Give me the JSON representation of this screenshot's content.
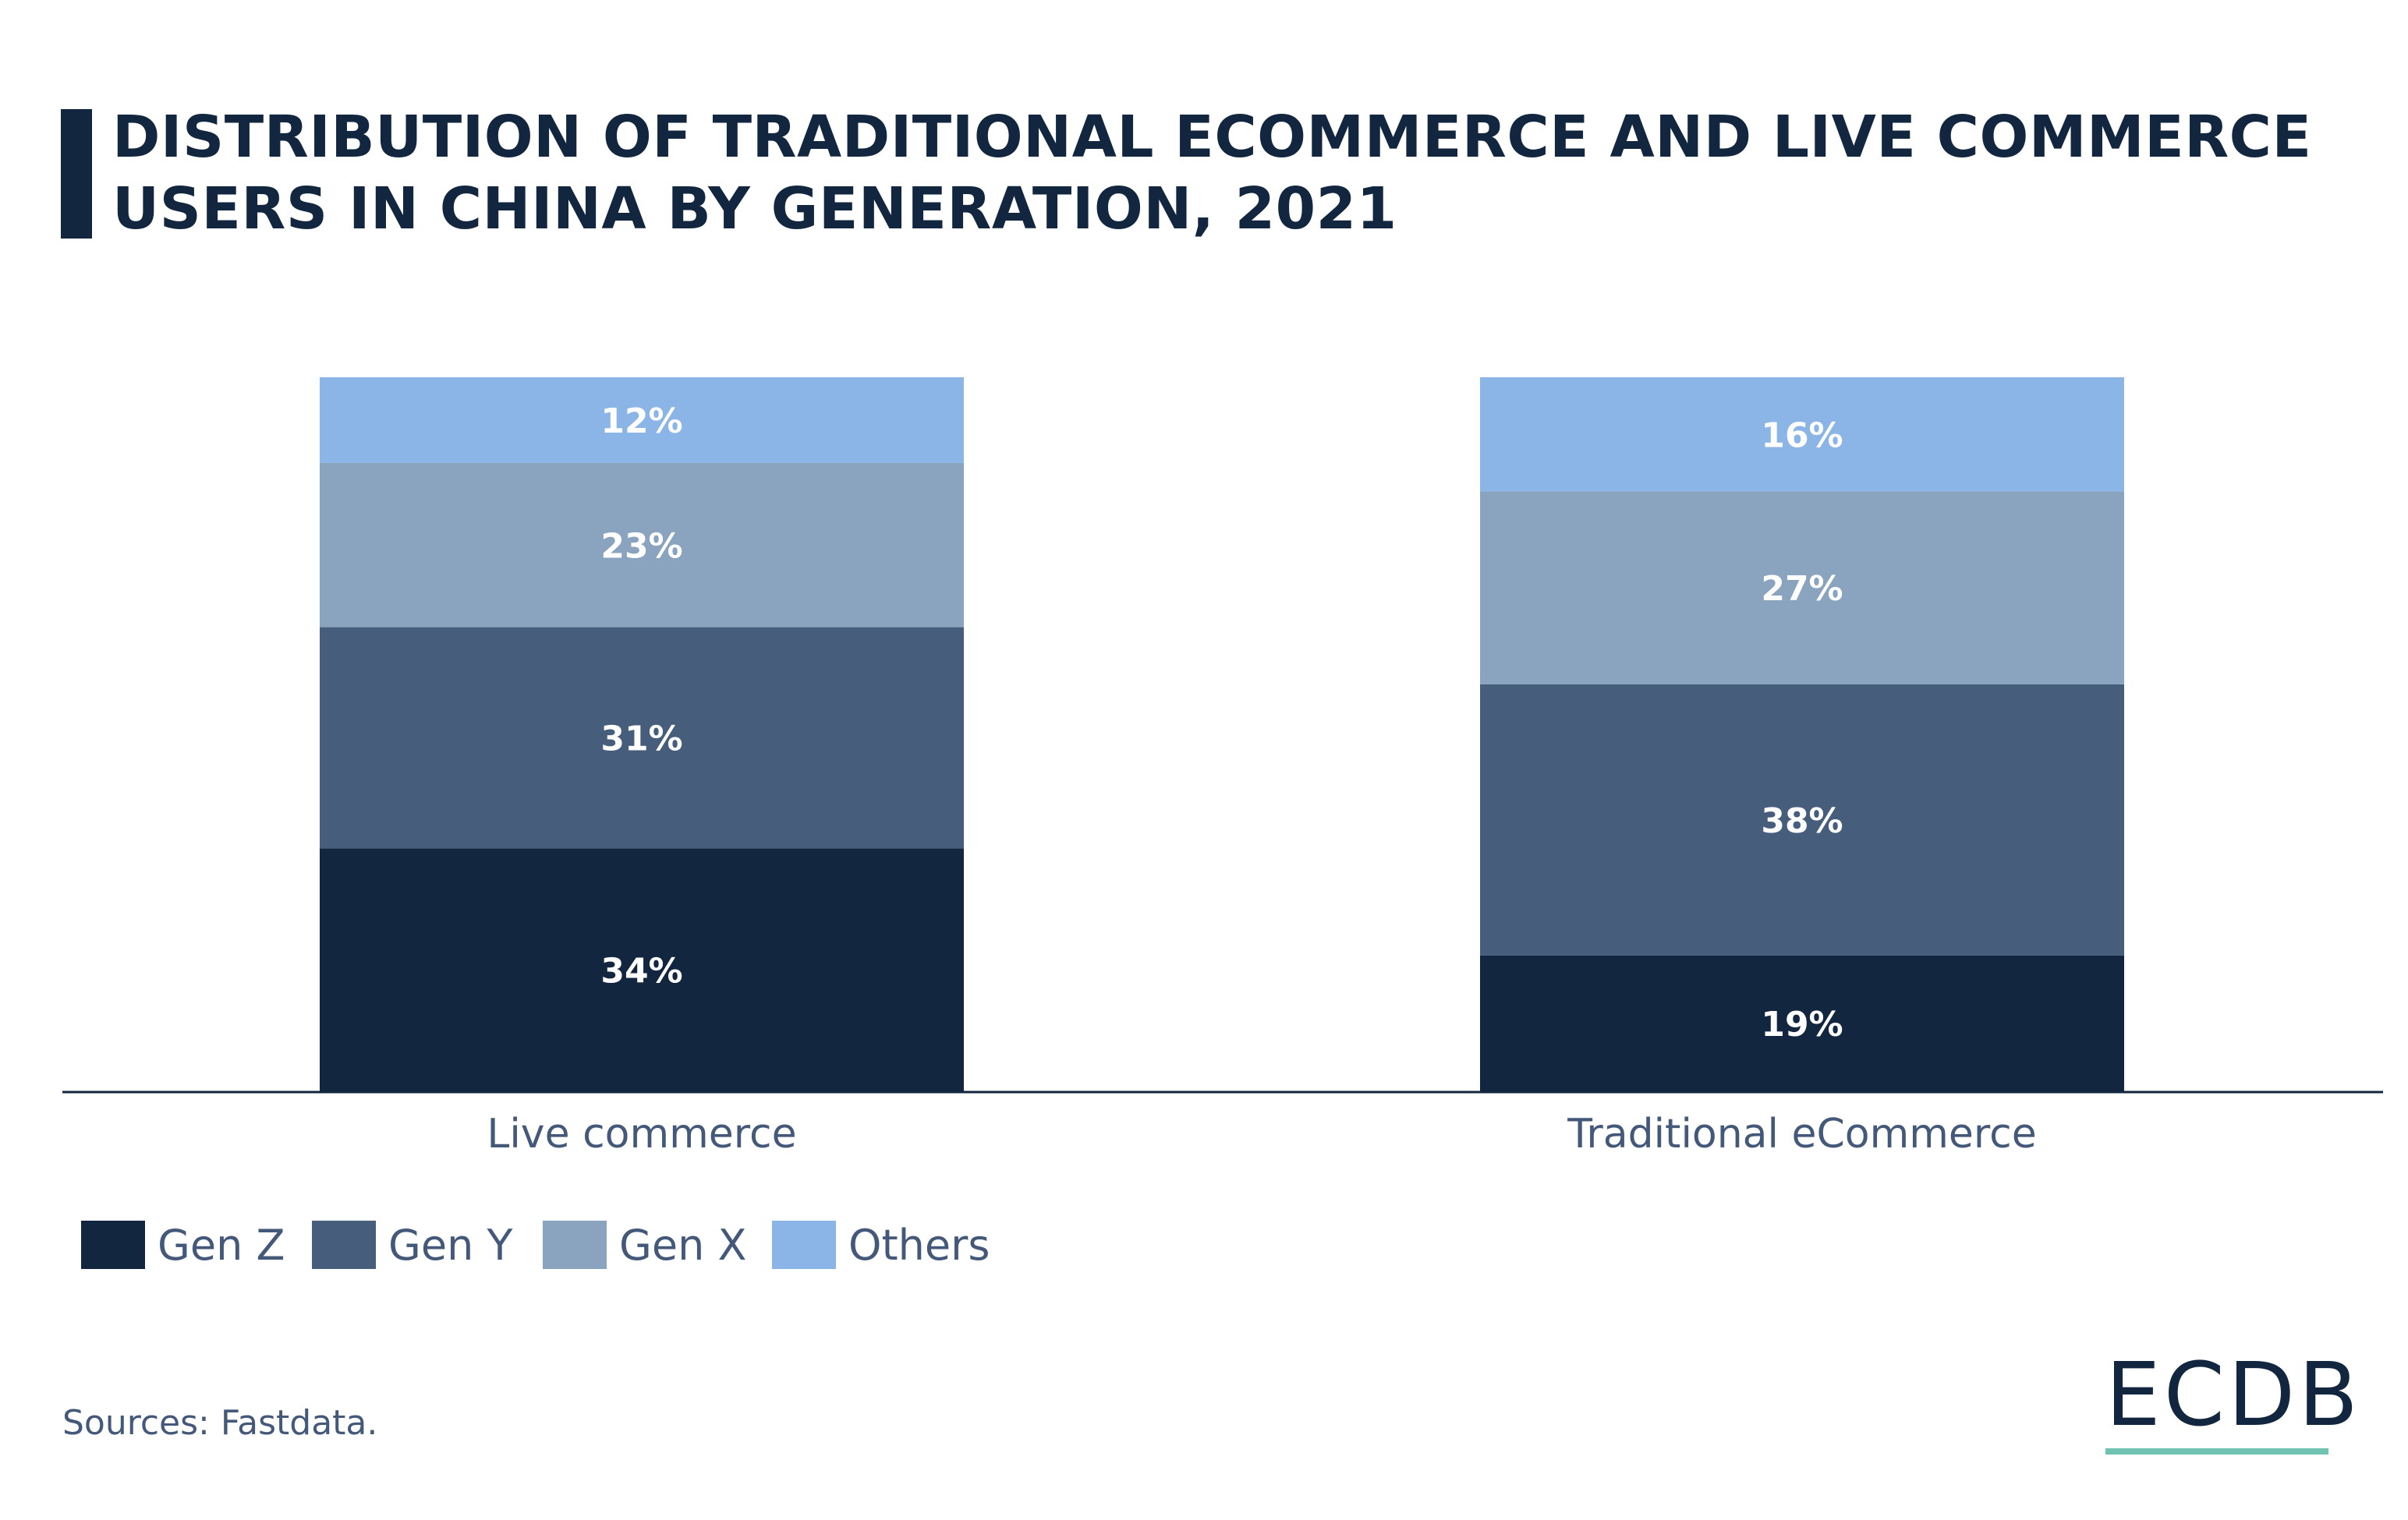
{
  "title": "DISTRIBUTION OF TRADITIONAL ECOMMERCE AND LIVE COMMERCE USERS IN CHINA BY GENERATION, 2021",
  "source": "Sources: Fastdata.",
  "logo": "ECDB",
  "chart_data": {
    "type": "bar",
    "stacked": true,
    "title": "DISTRIBUTION OF TRADITIONAL ECOMMERCE AND LIVE COMMERCE USERS IN CHINA BY GENERATION, 2021",
    "categories": [
      "Live commerce",
      "Traditional eCommerce"
    ],
    "series": [
      {
        "name": "Gen Z",
        "values": [
          34,
          19
        ],
        "color": "#12263f"
      },
      {
        "name": "Gen Y",
        "values": [
          31,
          38
        ],
        "color": "#465e7c"
      },
      {
        "name": "Gen X",
        "values": [
          23,
          27
        ],
        "color": "#8aa3be"
      },
      {
        "name": "Others",
        "values": [
          12,
          16
        ],
        "color": "#8bb5e6"
      }
    ],
    "value_suffix": "%",
    "ylim": [
      0,
      100
    ],
    "grid": false,
    "legend": "bottom-left",
    "label_color": "#ffffff",
    "axis_text_color": "#44597a"
  }
}
